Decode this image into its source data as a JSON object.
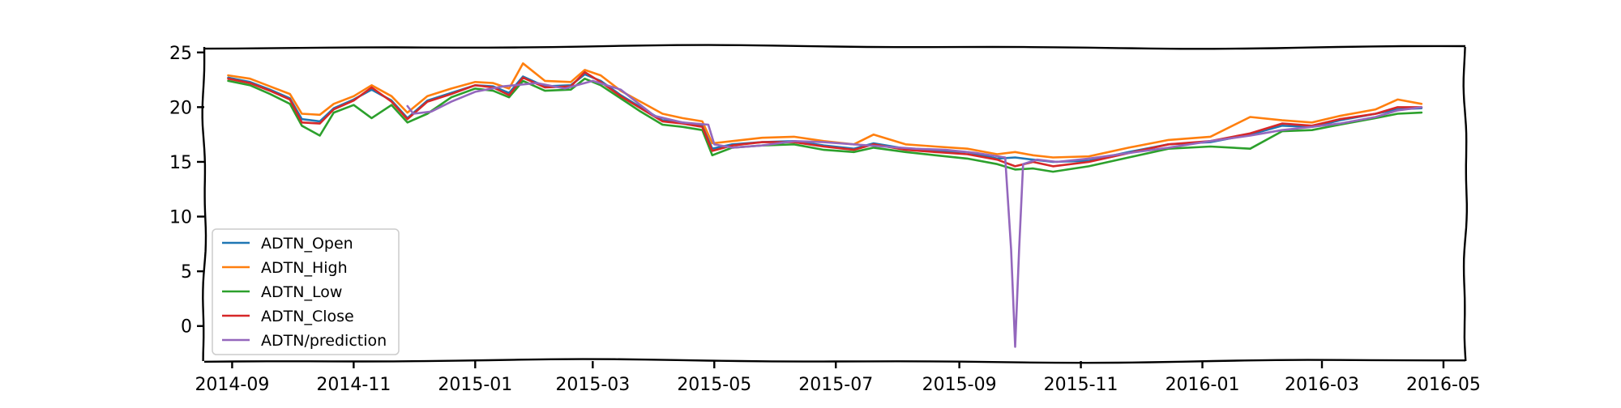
{
  "chart_data": {
    "type": "line",
    "title": "",
    "xlabel": "",
    "ylabel": "",
    "x_ticks": [
      "2014-09",
      "2014-11",
      "2015-01",
      "2015-03",
      "2015-05",
      "2015-07",
      "2015-09",
      "2015-11",
      "2016-01",
      "2016-03",
      "2016-05"
    ],
    "y_ticks": [
      0,
      5,
      10,
      15,
      20,
      25
    ],
    "xlim": [
      "2014-08-18",
      "2016-05-12"
    ],
    "ylim": [
      -3.2,
      25.5
    ],
    "grid": false,
    "legend_position": "lower-left",
    "series": [
      {
        "name": "ADTN_Open",
        "color": "#1f77b4",
        "points": [
          [
            "2014-08-30",
            22.7
          ],
          [
            "2014-09-10",
            22.3
          ],
          [
            "2014-09-20",
            21.6
          ],
          [
            "2014-09-30",
            20.8
          ],
          [
            "2014-10-06",
            18.9
          ],
          [
            "2014-10-15",
            18.7
          ],
          [
            "2014-10-22",
            19.9
          ],
          [
            "2014-11-01",
            20.7
          ],
          [
            "2014-11-10",
            21.6
          ],
          [
            "2014-11-20",
            20.6
          ],
          [
            "2014-11-28",
            19.0
          ],
          [
            "2014-12-08",
            20.6
          ],
          [
            "2014-12-20",
            21.3
          ],
          [
            "2015-01-01",
            22.0
          ],
          [
            "2015-01-10",
            21.9
          ],
          [
            "2015-01-18",
            21.3
          ],
          [
            "2015-01-25",
            22.8
          ],
          [
            "2015-02-05",
            21.9
          ],
          [
            "2015-02-18",
            22.0
          ],
          [
            "2015-02-25",
            23.0
          ],
          [
            "2015-03-05",
            22.4
          ],
          [
            "2015-03-15",
            21.1
          ],
          [
            "2015-03-25",
            20.0
          ],
          [
            "2015-04-05",
            18.8
          ],
          [
            "2015-04-15",
            18.6
          ],
          [
            "2015-04-25",
            18.3
          ],
          [
            "2015-04-30",
            16.2
          ],
          [
            "2015-05-10",
            16.6
          ],
          [
            "2015-05-25",
            16.8
          ],
          [
            "2015-06-10",
            16.9
          ],
          [
            "2015-06-25",
            16.5
          ],
          [
            "2015-07-10",
            16.2
          ],
          [
            "2015-07-20",
            16.7
          ],
          [
            "2015-08-05",
            16.2
          ],
          [
            "2015-08-20",
            16.0
          ],
          [
            "2015-09-05",
            15.9
          ],
          [
            "2015-09-20",
            15.3
          ],
          [
            "2015-09-29",
            15.4
          ],
          [
            "2015-10-08",
            15.2
          ],
          [
            "2015-10-18",
            15.0
          ],
          [
            "2015-11-05",
            15.1
          ],
          [
            "2015-11-25",
            15.9
          ],
          [
            "2015-12-15",
            16.6
          ],
          [
            "2016-01-05",
            16.8
          ],
          [
            "2016-01-25",
            17.5
          ],
          [
            "2016-02-10",
            18.3
          ],
          [
            "2016-02-25",
            18.2
          ],
          [
            "2016-03-10",
            18.8
          ],
          [
            "2016-03-28",
            19.4
          ],
          [
            "2016-04-08",
            19.8
          ],
          [
            "2016-04-20",
            19.9
          ]
        ]
      },
      {
        "name": "ADTN_High",
        "color": "#ff7f0e",
        "points": [
          [
            "2014-08-30",
            22.9
          ],
          [
            "2014-09-10",
            22.6
          ],
          [
            "2014-09-20",
            21.9
          ],
          [
            "2014-09-30",
            21.2
          ],
          [
            "2014-10-06",
            19.4
          ],
          [
            "2014-10-15",
            19.3
          ],
          [
            "2014-10-22",
            20.3
          ],
          [
            "2014-11-01",
            21.0
          ],
          [
            "2014-11-10",
            22.0
          ],
          [
            "2014-11-20",
            21.0
          ],
          [
            "2014-11-28",
            19.5
          ],
          [
            "2014-12-08",
            21.0
          ],
          [
            "2014-12-20",
            21.7
          ],
          [
            "2015-01-01",
            22.3
          ],
          [
            "2015-01-10",
            22.2
          ],
          [
            "2015-01-18",
            21.7
          ],
          [
            "2015-01-25",
            24.0
          ],
          [
            "2015-02-05",
            22.4
          ],
          [
            "2015-02-18",
            22.3
          ],
          [
            "2015-02-25",
            23.4
          ],
          [
            "2015-03-05",
            22.9
          ],
          [
            "2015-03-15",
            21.5
          ],
          [
            "2015-03-25",
            20.5
          ],
          [
            "2015-04-05",
            19.4
          ],
          [
            "2015-04-15",
            19.0
          ],
          [
            "2015-04-25",
            18.7
          ],
          [
            "2015-04-30",
            16.7
          ],
          [
            "2015-05-10",
            16.9
          ],
          [
            "2015-05-25",
            17.2
          ],
          [
            "2015-06-10",
            17.3
          ],
          [
            "2015-06-25",
            16.9
          ],
          [
            "2015-07-10",
            16.6
          ],
          [
            "2015-07-20",
            17.5
          ],
          [
            "2015-08-05",
            16.6
          ],
          [
            "2015-08-20",
            16.4
          ],
          [
            "2015-09-05",
            16.2
          ],
          [
            "2015-09-20",
            15.7
          ],
          [
            "2015-09-29",
            15.9
          ],
          [
            "2015-10-08",
            15.6
          ],
          [
            "2015-10-18",
            15.4
          ],
          [
            "2015-11-05",
            15.5
          ],
          [
            "2015-11-25",
            16.3
          ],
          [
            "2015-12-15",
            17.0
          ],
          [
            "2016-01-05",
            17.3
          ],
          [
            "2016-01-25",
            19.1
          ],
          [
            "2016-02-10",
            18.8
          ],
          [
            "2016-02-25",
            18.6
          ],
          [
            "2016-03-10",
            19.2
          ],
          [
            "2016-03-28",
            19.8
          ],
          [
            "2016-04-08",
            20.7
          ],
          [
            "2016-04-20",
            20.3
          ]
        ]
      },
      {
        "name": "ADTN_Low",
        "color": "#2ca02c",
        "points": [
          [
            "2014-08-30",
            22.4
          ],
          [
            "2014-09-10",
            22.0
          ],
          [
            "2014-09-20",
            21.2
          ],
          [
            "2014-09-30",
            20.3
          ],
          [
            "2014-10-06",
            18.3
          ],
          [
            "2014-10-15",
            17.4
          ],
          [
            "2014-10-22",
            19.5
          ],
          [
            "2014-11-01",
            20.2
          ],
          [
            "2014-11-10",
            19.0
          ],
          [
            "2014-11-20",
            20.2
          ],
          [
            "2014-11-28",
            18.6
          ],
          [
            "2014-12-08",
            19.4
          ],
          [
            "2014-12-20",
            20.9
          ],
          [
            "2015-01-01",
            21.7
          ],
          [
            "2015-01-10",
            21.5
          ],
          [
            "2015-01-18",
            20.9
          ],
          [
            "2015-01-25",
            22.4
          ],
          [
            "2015-02-05",
            21.5
          ],
          [
            "2015-02-18",
            21.6
          ],
          [
            "2015-02-25",
            22.6
          ],
          [
            "2015-03-05",
            22.0
          ],
          [
            "2015-03-15",
            20.8
          ],
          [
            "2015-03-25",
            19.6
          ],
          [
            "2015-04-05",
            18.4
          ],
          [
            "2015-04-15",
            18.2
          ],
          [
            "2015-04-25",
            17.9
          ],
          [
            "2015-04-30",
            15.6
          ],
          [
            "2015-05-10",
            16.3
          ],
          [
            "2015-05-25",
            16.5
          ],
          [
            "2015-06-10",
            16.6
          ],
          [
            "2015-06-25",
            16.1
          ],
          [
            "2015-07-10",
            15.9
          ],
          [
            "2015-07-20",
            16.3
          ],
          [
            "2015-08-05",
            15.9
          ],
          [
            "2015-08-20",
            15.6
          ],
          [
            "2015-09-05",
            15.3
          ],
          [
            "2015-09-20",
            14.8
          ],
          [
            "2015-09-29",
            14.3
          ],
          [
            "2015-10-08",
            14.4
          ],
          [
            "2015-10-18",
            14.1
          ],
          [
            "2015-11-05",
            14.6
          ],
          [
            "2015-11-25",
            15.4
          ],
          [
            "2015-12-15",
            16.2
          ],
          [
            "2016-01-05",
            16.4
          ],
          [
            "2016-01-25",
            16.2
          ],
          [
            "2016-02-10",
            17.8
          ],
          [
            "2016-02-25",
            17.9
          ],
          [
            "2016-03-10",
            18.4
          ],
          [
            "2016-03-28",
            19.0
          ],
          [
            "2016-04-08",
            19.4
          ],
          [
            "2016-04-20",
            19.5
          ]
        ]
      },
      {
        "name": "ADTN_Close",
        "color": "#d62728",
        "points": [
          [
            "2014-08-30",
            22.6
          ],
          [
            "2014-09-10",
            22.2
          ],
          [
            "2014-09-20",
            21.5
          ],
          [
            "2014-09-30",
            20.7
          ],
          [
            "2014-10-06",
            18.6
          ],
          [
            "2014-10-15",
            18.5
          ],
          [
            "2014-10-22",
            19.8
          ],
          [
            "2014-11-01",
            20.6
          ],
          [
            "2014-11-10",
            21.8
          ],
          [
            "2014-11-20",
            20.5
          ],
          [
            "2014-11-28",
            18.9
          ],
          [
            "2014-12-08",
            20.5
          ],
          [
            "2014-12-20",
            21.2
          ],
          [
            "2015-01-01",
            22.0
          ],
          [
            "2015-01-10",
            21.8
          ],
          [
            "2015-01-18",
            21.1
          ],
          [
            "2015-01-25",
            22.7
          ],
          [
            "2015-02-05",
            21.8
          ],
          [
            "2015-02-18",
            21.9
          ],
          [
            "2015-02-25",
            23.2
          ],
          [
            "2015-03-05",
            22.3
          ],
          [
            "2015-03-15",
            21.0
          ],
          [
            "2015-03-25",
            19.9
          ],
          [
            "2015-04-05",
            18.7
          ],
          [
            "2015-04-15",
            18.5
          ],
          [
            "2015-04-25",
            18.2
          ],
          [
            "2015-04-30",
            16.0
          ],
          [
            "2015-05-10",
            16.5
          ],
          [
            "2015-05-25",
            16.8
          ],
          [
            "2015-06-10",
            16.8
          ],
          [
            "2015-06-25",
            16.4
          ],
          [
            "2015-07-10",
            16.1
          ],
          [
            "2015-07-20",
            16.6
          ],
          [
            "2015-08-05",
            16.1
          ],
          [
            "2015-08-20",
            15.9
          ],
          [
            "2015-09-05",
            15.7
          ],
          [
            "2015-09-20",
            15.2
          ],
          [
            "2015-09-29",
            14.6
          ],
          [
            "2015-10-08",
            15.0
          ],
          [
            "2015-10-18",
            14.6
          ],
          [
            "2015-11-05",
            15.0
          ],
          [
            "2015-11-25",
            15.8
          ],
          [
            "2015-12-15",
            16.6
          ],
          [
            "2016-01-05",
            16.9
          ],
          [
            "2016-01-25",
            17.6
          ],
          [
            "2016-02-10",
            18.5
          ],
          [
            "2016-02-25",
            18.3
          ],
          [
            "2016-03-10",
            18.9
          ],
          [
            "2016-03-28",
            19.4
          ],
          [
            "2016-04-08",
            20.0
          ],
          [
            "2016-04-20",
            20.0
          ]
        ]
      },
      {
        "name": "ADTN/prediction",
        "color": "#9467bd",
        "points": [
          [
            "2014-11-28",
            20.1
          ],
          [
            "2014-12-01",
            19.4
          ],
          [
            "2014-12-10",
            19.6
          ],
          [
            "2014-12-20",
            20.5
          ],
          [
            "2015-01-01",
            21.4
          ],
          [
            "2015-01-15",
            21.9
          ],
          [
            "2015-02-01",
            22.2
          ],
          [
            "2015-02-15",
            21.7
          ],
          [
            "2015-03-01",
            22.4
          ],
          [
            "2015-03-15",
            21.6
          ],
          [
            "2015-04-01",
            19.2
          ],
          [
            "2015-04-15",
            18.6
          ],
          [
            "2015-04-28",
            18.4
          ],
          [
            "2015-05-01",
            16.6
          ],
          [
            "2015-05-10",
            16.3
          ],
          [
            "2015-05-25",
            16.5
          ],
          [
            "2015-06-10",
            16.9
          ],
          [
            "2015-06-25",
            16.8
          ],
          [
            "2015-07-10",
            16.6
          ],
          [
            "2015-07-25",
            16.4
          ],
          [
            "2015-08-10",
            16.2
          ],
          [
            "2015-08-25",
            16.1
          ],
          [
            "2015-09-10",
            15.8
          ],
          [
            "2015-09-24",
            15.4
          ],
          [
            "2015-09-27",
            7.0
          ],
          [
            "2015-09-29",
            -1.9
          ],
          [
            "2015-10-01",
            7.0
          ],
          [
            "2015-10-03",
            14.8
          ],
          [
            "2015-10-10",
            15.2
          ],
          [
            "2015-10-20",
            15.0
          ],
          [
            "2015-11-05",
            15.3
          ],
          [
            "2015-11-25",
            15.8
          ],
          [
            "2015-12-15",
            16.3
          ],
          [
            "2016-01-05",
            16.9
          ],
          [
            "2016-01-25",
            17.4
          ],
          [
            "2016-02-10",
            17.9
          ],
          [
            "2016-02-25",
            18.2
          ],
          [
            "2016-03-10",
            18.5
          ],
          [
            "2016-03-28",
            19.1
          ],
          [
            "2016-04-08",
            19.7
          ],
          [
            "2016-04-20",
            20.0
          ]
        ]
      }
    ]
  }
}
